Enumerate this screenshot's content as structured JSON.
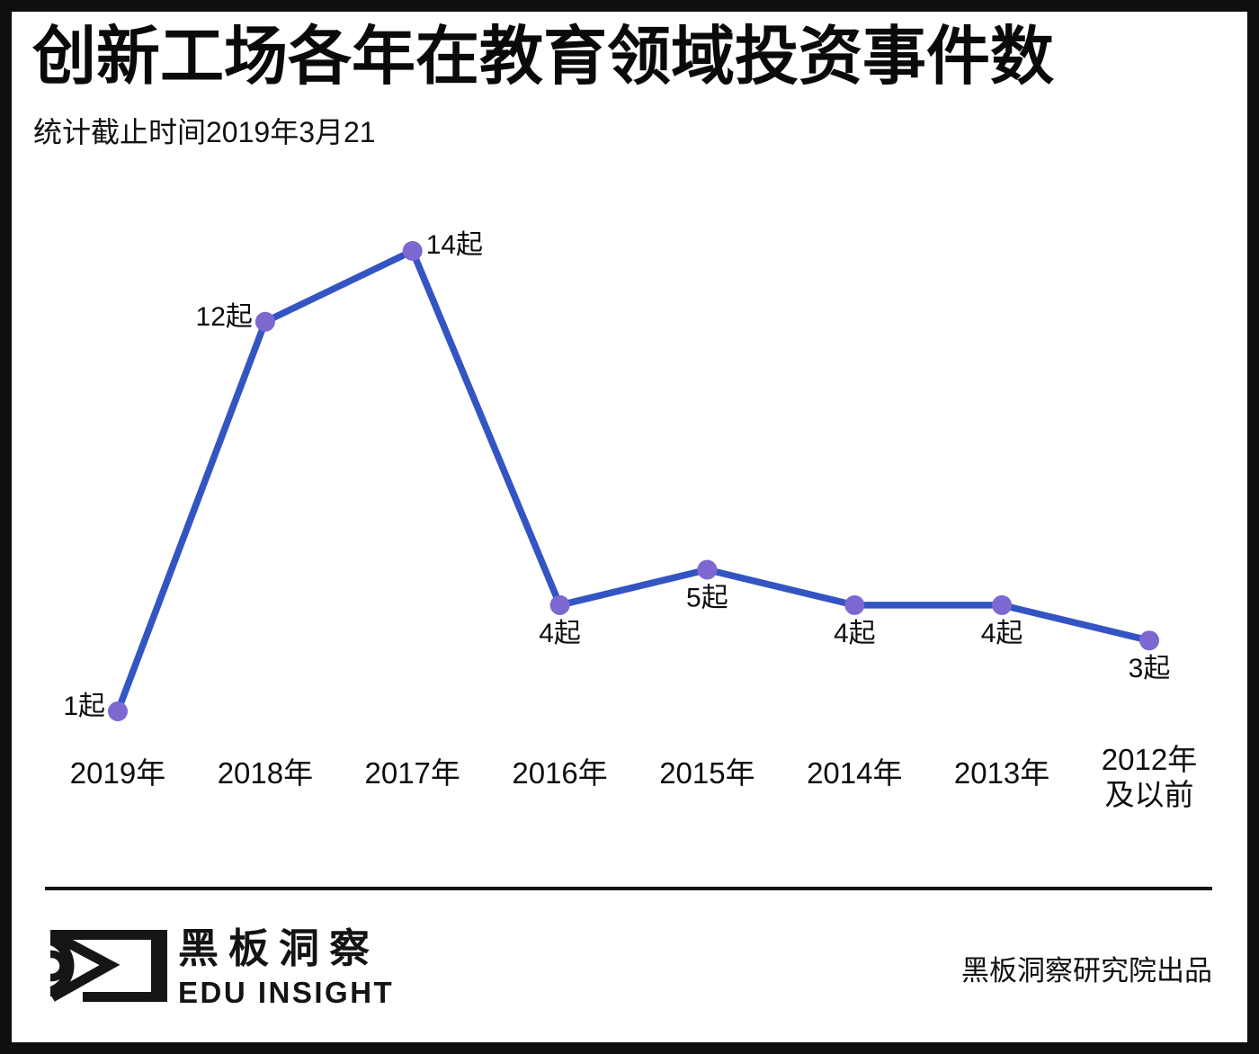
{
  "chart_data": {
    "type": "line",
    "title": "创新工场各年在教育领域投资事件数",
    "subtitle": "统计截止时间2019年3月21",
    "categories": [
      "2019年",
      "2018年",
      "2017年",
      "2016年",
      "2015年",
      "2014年",
      "2013年",
      "2012年\n及以前"
    ],
    "values": [
      1,
      12,
      14,
      4,
      5,
      4,
      4,
      3
    ],
    "unit": "起",
    "point_labels": [
      "1起",
      "12起",
      "14起",
      "4起",
      "5起",
      "4起",
      "4起",
      "3起"
    ],
    "label_positions": [
      "left",
      "left",
      "right",
      "below",
      "below",
      "below",
      "below",
      "below"
    ],
    "ylim": [
      0,
      15
    ],
    "grid": false,
    "legend": false,
    "line_color": "#3355C4",
    "marker_color": "#7D68D1",
    "label_color": "#0d0d0d"
  },
  "footer": {
    "logo_title": "黑板洞察",
    "logo_subtitle": "EDU INSIGHT",
    "credit": "黑板洞察研究院出品"
  },
  "theme": {
    "frame_color": "#0f0f0f",
    "background": "#ffffff"
  }
}
